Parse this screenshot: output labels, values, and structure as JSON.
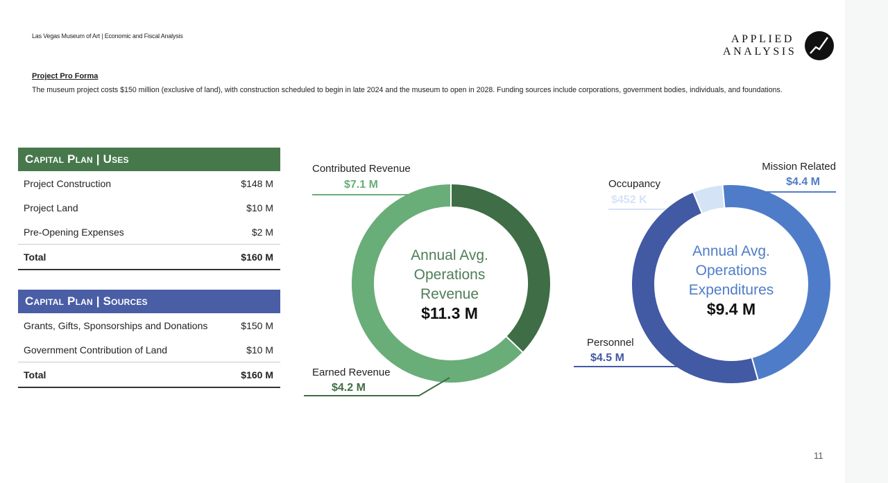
{
  "header": {
    "doc_title": "Las Vegas Museum of Art | Economic and Fiscal Analysis",
    "logo_line1": "APPLIED",
    "logo_line2": "ANALYSIS"
  },
  "pro_forma": {
    "title": "Project Pro Forma",
    "description": "The museum project costs $150 million (exclusive of land), with construction scheduled to begin in late 2024 and the museum to open in 2028. Funding sources include corporations, government bodies, individuals, and foundations."
  },
  "capital_uses": {
    "title": "Capital Plan | Uses",
    "rows": [
      {
        "label": "Project Construction",
        "value": "$148 M"
      },
      {
        "label": "Project Land",
        "value": "$10 M"
      },
      {
        "label": "Pre-Opening Expenses",
        "value": "$2 M"
      }
    ],
    "total_label": "Total",
    "total_value": "$160 M"
  },
  "capital_sources": {
    "title": "Capital Plan | Sources",
    "rows": [
      {
        "label": "Grants, Gifts, Sponsorships and Donations",
        "value": "$150 M"
      },
      {
        "label": "Government Contribution of Land",
        "value": "$10 M"
      }
    ],
    "total_label": "Total",
    "total_value": "$160 M"
  },
  "colors": {
    "green_dark": "#3f6d45",
    "green_light": "#69ad78",
    "blue_dark": "#4259a3",
    "blue_mid": "#4f7cc8",
    "blue_light": "#d5e3f6"
  },
  "page_number": "11",
  "chart_data": [
    {
      "type": "pie",
      "donut": true,
      "center_label": [
        "Annual Avg.",
        "Operations",
        "Revenue"
      ],
      "center_value": "$11.3 M",
      "series": [
        {
          "name": "Contributed Revenue",
          "value": 7.1,
          "label": "$7.1 M"
        },
        {
          "name": "Earned Revenue",
          "value": 4.2,
          "label": "$4.2 M"
        }
      ],
      "units": "$ millions"
    },
    {
      "type": "pie",
      "donut": true,
      "center_label": [
        "Annual Avg.",
        "Operations",
        "Expenditures"
      ],
      "center_value": "$9.4 M",
      "series": [
        {
          "name": "Mission Related",
          "value": 4.4,
          "label": "$4.4 M"
        },
        {
          "name": "Personnel",
          "value": 4.5,
          "label": "$4.5 M"
        },
        {
          "name": "Occupancy",
          "value": 0.452,
          "label": "$452 K"
        }
      ],
      "units": "$ millions"
    }
  ]
}
